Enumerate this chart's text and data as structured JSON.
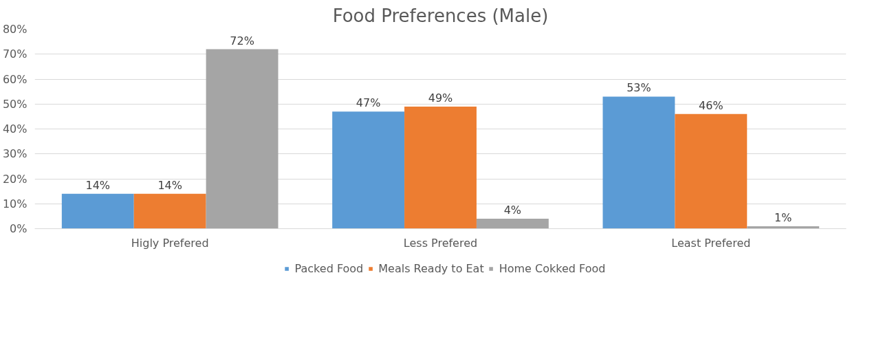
{
  "chart_data": {
    "type": "bar",
    "title": "Food Preferences (Male)",
    "categories": [
      "Higly Prefered",
      "Less Prefered",
      "Least Prefered"
    ],
    "series": [
      {
        "name": "Packed Food",
        "color": "#5b9bd5",
        "values": [
          14,
          47,
          53
        ],
        "value_labels": [
          "14%",
          "47%",
          "53%"
        ]
      },
      {
        "name": "Meals Ready to Eat",
        "color": "#ed7d31",
        "values": [
          14,
          49,
          46
        ],
        "value_labels": [
          "14%",
          "49%",
          "46%"
        ]
      },
      {
        "name": "Home Cokked Food",
        "color": "#a5a5a5",
        "values": [
          72,
          4,
          1
        ],
        "value_labels": [
          "72%",
          "4%",
          "1%"
        ]
      }
    ],
    "ylim": [
      0,
      80
    ],
    "yticks": [
      {
        "value": 0,
        "label": "0%"
      },
      {
        "value": 10,
        "label": "10%"
      },
      {
        "value": 20,
        "label": "20%"
      },
      {
        "value": 30,
        "label": "30%"
      },
      {
        "value": 40,
        "label": "40%"
      },
      {
        "value": 50,
        "label": "50%"
      },
      {
        "value": 60,
        "label": "60%"
      },
      {
        "value": 70,
        "label": "70%"
      },
      {
        "value": 80,
        "label": "80%"
      }
    ],
    "grid": "y",
    "legend": "bottom"
  }
}
